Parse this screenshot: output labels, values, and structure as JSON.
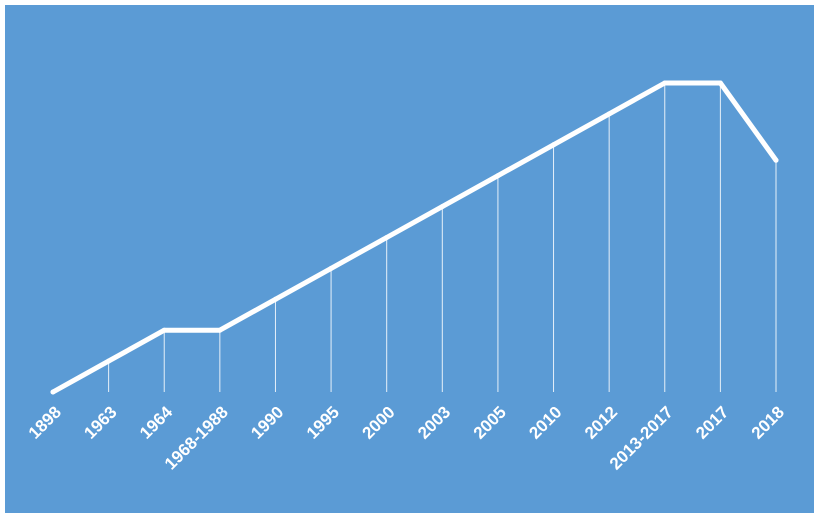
{
  "colors": {
    "background": "#5b9bd5",
    "line": "#ffffff",
    "drop_lines": "#ffffff",
    "page": "#ffffff"
  },
  "chart_data": {
    "type": "line",
    "title": "",
    "xlabel": "",
    "ylabel": "",
    "categories": [
      "1898",
      "1963",
      "1964",
      "1968-1988",
      "1990",
      "1995",
      "2000",
      "2003",
      "2005",
      "2010",
      "2012",
      "2013-2017",
      "2017",
      "2018"
    ],
    "series": [
      {
        "values": [
          0,
          1,
          2,
          2,
          3,
          4,
          5,
          6,
          7,
          8,
          9,
          10,
          10,
          7.5
        ]
      }
    ],
    "ylim": [
      0,
      10
    ],
    "grid": false,
    "legend": "none",
    "drop_lines": true,
    "y_axis_visible": false
  }
}
